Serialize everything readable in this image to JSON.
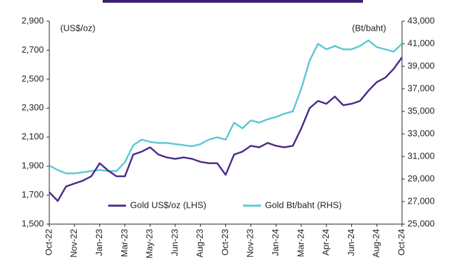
{
  "chart_data": {
    "type": "line",
    "categories": [
      "Oct-22",
      null,
      null,
      "Nov-22",
      null,
      null,
      "Jan-23",
      null,
      null,
      "Mar-23",
      null,
      null,
      "May-23",
      null,
      null,
      "Jun-23",
      null,
      null,
      "Aug-23",
      null,
      null,
      "Oct-23",
      null,
      null,
      "Nov-23",
      null,
      null,
      "Jan-24",
      null,
      null,
      "Mar-24",
      null,
      null,
      "Apr-24",
      null,
      null,
      "Jun-24",
      null,
      null,
      "Aug-24",
      null,
      null,
      "Oct-24"
    ],
    "series": [
      {
        "name": "Gold US$/oz (LHS)",
        "color": "#4b2a8a",
        "axis": "y",
        "values": [
          1720,
          1660,
          1760,
          1780,
          1800,
          1830,
          1920,
          1870,
          1830,
          1830,
          1980,
          2000,
          2030,
          1980,
          1960,
          1950,
          1960,
          1950,
          1930,
          1920,
          1920,
          1840,
          1980,
          2000,
          2040,
          2030,
          2060,
          2040,
          2030,
          2040,
          2160,
          2300,
          2350,
          2330,
          2380,
          2320,
          2330,
          2350,
          2420,
          2480,
          2510,
          2570,
          2650
        ]
      },
      {
        "name": "Gold Bt/baht (RHS)",
        "color": "#5bc8d6",
        "axis": "y2",
        "values": [
          30200,
          29800,
          29500,
          29500,
          29600,
          29700,
          29800,
          29700,
          29700,
          30500,
          32000,
          32500,
          32300,
          32200,
          32200,
          32100,
          32000,
          31900,
          32100,
          32500,
          32700,
          32500,
          34000,
          33500,
          34200,
          34000,
          34300,
          34500,
          34800,
          35000,
          37000,
          39500,
          41000,
          40500,
          40800,
          40500,
          40500,
          40800,
          41300,
          40700,
          40500,
          40300,
          41000
        ]
      }
    ],
    "ylabel": "(US$/oz)",
    "y2label": "(Bt/baht)",
    "ylim": [
      1500,
      2900
    ],
    "yticks": [
      {
        "value": 1500,
        "label": "1,500"
      },
      {
        "value": 1700,
        "label": "1,700"
      },
      {
        "value": 1900,
        "label": "1,900"
      },
      {
        "value": 2100,
        "label": "2,100"
      },
      {
        "value": 2300,
        "label": "2,300"
      },
      {
        "value": 2500,
        "label": "2,500"
      },
      {
        "value": 2700,
        "label": "2,700"
      },
      {
        "value": 2900,
        "label": "2,900"
      }
    ],
    "y2lim": [
      25000,
      43000
    ],
    "y2ticks": [
      {
        "value": 25000,
        "label": "25,000"
      },
      {
        "value": 27000,
        "label": "27,000"
      },
      {
        "value": 29000,
        "label": "29,000"
      },
      {
        "value": 31000,
        "label": "31,000"
      },
      {
        "value": 33000,
        "label": "33,000"
      },
      {
        "value": 35000,
        "label": "35,000"
      },
      {
        "value": 37000,
        "label": "37,000"
      },
      {
        "value": 39000,
        "label": "39,000"
      },
      {
        "value": 41000,
        "label": "41,000"
      },
      {
        "value": 43000,
        "label": "43,000"
      }
    ],
    "legend": "bottom",
    "grid": false
  }
}
